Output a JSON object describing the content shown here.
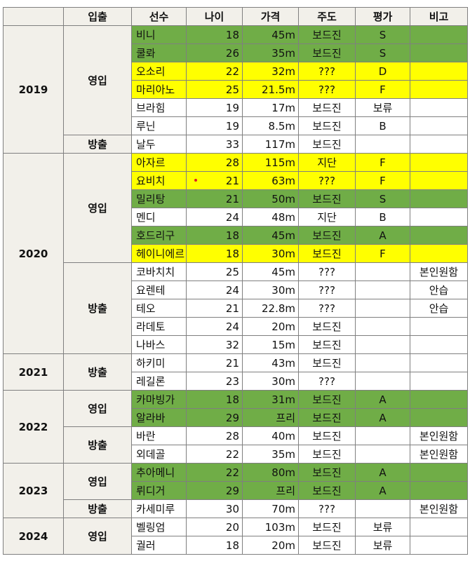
{
  "headers": [
    "",
    "입출",
    "선수",
    "나이",
    "가격",
    "주도",
    "평가",
    "비고"
  ],
  "years": [
    {
      "year": "2019",
      "groups": [
        {
          "type": "영입",
          "rows": [
            {
              "name": "비니",
              "age": "18",
              "price": "45m",
              "lead": "보드진",
              "rating": "S",
              "note": "",
              "color": "green"
            },
            {
              "name": "쿨롸",
              "age": "26",
              "price": "35m",
              "lead": "보드진",
              "rating": "S",
              "note": "",
              "color": "green"
            },
            {
              "name": "오소리",
              "age": "22",
              "price": "32m",
              "lead": "???",
              "rating": "D",
              "note": "",
              "color": "yellow"
            },
            {
              "name": "마리아노",
              "age": "25",
              "price": "21.5m",
              "lead": "???",
              "rating": "F",
              "note": "",
              "color": "yellow"
            },
            {
              "name": "브라힘",
              "age": "19",
              "price": "17m",
              "lead": "보드진",
              "rating": "보류",
              "note": "",
              "color": "white"
            },
            {
              "name": "루닌",
              "age": "19",
              "price": "8.5m",
              "lead": "보드진",
              "rating": "B",
              "note": "",
              "color": "white"
            }
          ]
        },
        {
          "type": "방출",
          "rows": [
            {
              "name": "날두",
              "age": "33",
              "price": "117m",
              "lead": "보드진",
              "rating": "",
              "note": "",
              "color": "white"
            }
          ]
        }
      ]
    },
    {
      "year": "2020",
      "groups": [
        {
          "type": "영입",
          "rows": [
            {
              "name": "아자르",
              "age": "28",
              "price": "115m",
              "lead": "지단",
              "rating": "F",
              "note": "",
              "color": "yellow"
            },
            {
              "name": "요비치",
              "age": "21",
              "price": "63m",
              "lead": "???",
              "rating": "F",
              "note": "",
              "color": "yellow"
            },
            {
              "name": "밀리탕",
              "age": "21",
              "price": "50m",
              "lead": "보드진",
              "rating": "S",
              "note": "",
              "color": "green"
            },
            {
              "name": "멘디",
              "age": "24",
              "price": "48m",
              "lead": "지단",
              "rating": "B",
              "note": "",
              "color": "white"
            },
            {
              "name": "호드리구",
              "age": "18",
              "price": "45m",
              "lead": "보드진",
              "rating": "A",
              "note": "",
              "color": "green"
            },
            {
              "name": "헤이니에르",
              "age": "18",
              "price": "30m",
              "lead": "보드진",
              "rating": "F",
              "note": "",
              "color": "yellow"
            }
          ]
        },
        {
          "type": "방출",
          "rows": [
            {
              "name": "코바치치",
              "age": "25",
              "price": "45m",
              "lead": "???",
              "rating": "",
              "note": "본인원함",
              "color": "white"
            },
            {
              "name": "요렌테",
              "age": "24",
              "price": "30m",
              "lead": "???",
              "rating": "",
              "note": "안습",
              "color": "white"
            },
            {
              "name": "테오",
              "age": "21",
              "price": "22.8m",
              "lead": "???",
              "rating": "",
              "note": "안습",
              "color": "white"
            },
            {
              "name": "라데토",
              "age": "24",
              "price": "20m",
              "lead": "보드진",
              "rating": "",
              "note": "",
              "color": "white"
            },
            {
              "name": "나바스",
              "age": "32",
              "price": "15m",
              "lead": "보드진",
              "rating": "",
              "note": "",
              "color": "white"
            }
          ]
        }
      ]
    },
    {
      "year": "2021",
      "groups": [
        {
          "type": "방출",
          "rows": [
            {
              "name": "하키미",
              "age": "21",
              "price": "43m",
              "lead": "보드진",
              "rating": "",
              "note": "",
              "color": "white"
            },
            {
              "name": "레길론",
              "age": "23",
              "price": "30m",
              "lead": "???",
              "rating": "",
              "note": "",
              "color": "white"
            }
          ]
        }
      ]
    },
    {
      "year": "2022",
      "groups": [
        {
          "type": "영입",
          "rows": [
            {
              "name": "카마빙가",
              "age": "18",
              "price": "31m",
              "lead": "보드진",
              "rating": "A",
              "note": "",
              "color": "green"
            },
            {
              "name": "알라바",
              "age": "29",
              "price": "프리",
              "lead": "보드진",
              "rating": "A",
              "note": "",
              "color": "green"
            }
          ]
        },
        {
          "type": "방출",
          "rows": [
            {
              "name": "바란",
              "age": "28",
              "price": "40m",
              "lead": "보드진",
              "rating": "",
              "note": "본인원함",
              "color": "white"
            },
            {
              "name": "외데골",
              "age": "22",
              "price": "35m",
              "lead": "보드진",
              "rating": "",
              "note": "본인원함",
              "color": "white"
            }
          ]
        }
      ]
    },
    {
      "year": "2023",
      "groups": [
        {
          "type": "영입",
          "rows": [
            {
              "name": "추아메니",
              "age": "22",
              "price": "80m",
              "lead": "보드진",
              "rating": "A",
              "note": "",
              "color": "green"
            },
            {
              "name": "뤼디거",
              "age": "29",
              "price": "프리",
              "lead": "보드진",
              "rating": "A",
              "note": "",
              "color": "green"
            }
          ]
        },
        {
          "type": "방출",
          "rows": [
            {
              "name": "카세미루",
              "age": "30",
              "price": "70m",
              "lead": "???",
              "rating": "",
              "note": "본인원함",
              "color": "white"
            }
          ]
        }
      ]
    },
    {
      "year": "2024",
      "groups": [
        {
          "type": "영입",
          "rows": [
            {
              "name": "벨링엄",
              "age": "20",
              "price": "103m",
              "lead": "보드진",
              "rating": "보류",
              "note": "",
              "color": "white"
            },
            {
              "name": "궐러",
              "age": "18",
              "price": "20m",
              "lead": "보드진",
              "rating": "보류",
              "note": "",
              "color": "white"
            }
          ]
        }
      ]
    }
  ]
}
